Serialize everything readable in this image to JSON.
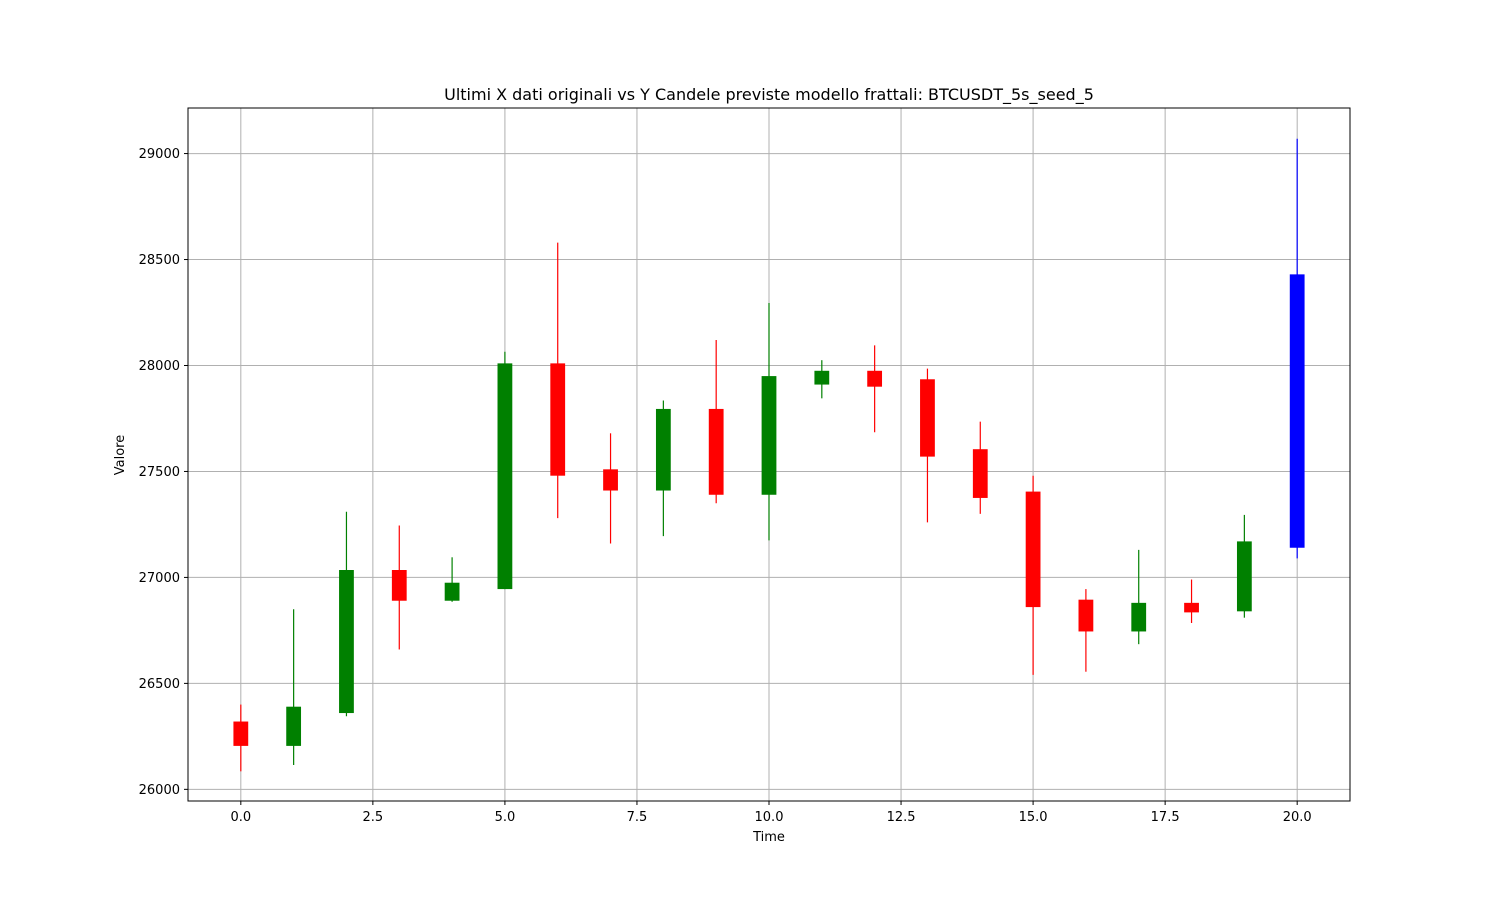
{
  "chart_data": {
    "type": "candlestick",
    "title": "Ultimi X dati originali vs Y Candele previste modello frattali: BTCUSDT_5s_seed_5",
    "xlabel": "Time",
    "ylabel": "Valore",
    "xlim": [
      -1,
      21
    ],
    "ylim": [
      25945,
      29215
    ],
    "xticks": [
      0.0,
      2.5,
      5.0,
      7.5,
      10.0,
      12.5,
      15.0,
      17.5,
      20.0
    ],
    "xtick_labels": [
      "0.0",
      "2.5",
      "5.0",
      "7.5",
      "10.0",
      "12.5",
      "15.0",
      "17.5",
      "20.0"
    ],
    "yticks": [
      26000,
      26500,
      27000,
      27500,
      28000,
      28500,
      29000
    ],
    "ytick_labels": [
      "26000",
      "26500",
      "27000",
      "27500",
      "28000",
      "28500",
      "29000"
    ],
    "grid": true,
    "colors": {
      "up": "#008000",
      "down": "#ff0000",
      "predicted": "#0000ff"
    },
    "candles": [
      {
        "x": 0,
        "open": 26320,
        "close": 26205,
        "high": 26400,
        "low": 26085,
        "color": "down"
      },
      {
        "x": 1,
        "open": 26205,
        "close": 26390,
        "high": 26850,
        "low": 26115,
        "color": "up"
      },
      {
        "x": 2,
        "open": 26360,
        "close": 27035,
        "high": 27310,
        "low": 26345,
        "color": "up"
      },
      {
        "x": 3,
        "open": 27035,
        "close": 26890,
        "high": 27245,
        "low": 26660,
        "color": "down"
      },
      {
        "x": 4,
        "open": 26890,
        "close": 26975,
        "high": 27095,
        "low": 26885,
        "color": "up"
      },
      {
        "x": 5,
        "open": 26945,
        "close": 28010,
        "high": 28065,
        "low": 26945,
        "color": "up"
      },
      {
        "x": 6,
        "open": 28010,
        "close": 27480,
        "high": 28580,
        "low": 27280,
        "color": "down"
      },
      {
        "x": 7,
        "open": 27510,
        "close": 27410,
        "high": 27680,
        "low": 27160,
        "color": "down"
      },
      {
        "x": 8,
        "open": 27410,
        "close": 27795,
        "high": 27835,
        "low": 27195,
        "color": "up"
      },
      {
        "x": 9,
        "open": 27795,
        "close": 27390,
        "high": 28120,
        "low": 27350,
        "color": "down"
      },
      {
        "x": 10,
        "open": 27390,
        "close": 27950,
        "high": 28295,
        "low": 27175,
        "color": "up"
      },
      {
        "x": 11,
        "open": 27910,
        "close": 27975,
        "high": 28025,
        "low": 27845,
        "color": "up"
      },
      {
        "x": 12,
        "open": 27975,
        "close": 27900,
        "high": 28095,
        "low": 27685,
        "color": "down"
      },
      {
        "x": 13,
        "open": 27935,
        "close": 27570,
        "high": 27985,
        "low": 27260,
        "color": "down"
      },
      {
        "x": 14,
        "open": 27605,
        "close": 27375,
        "high": 27735,
        "low": 27300,
        "color": "down"
      },
      {
        "x": 15,
        "open": 27405,
        "close": 26860,
        "high": 27480,
        "low": 26540,
        "color": "down"
      },
      {
        "x": 16,
        "open": 26895,
        "close": 26745,
        "high": 26945,
        "low": 26555,
        "color": "down"
      },
      {
        "x": 17,
        "open": 26745,
        "close": 26880,
        "high": 27130,
        "low": 26685,
        "color": "up"
      },
      {
        "x": 18,
        "open": 26880,
        "close": 26835,
        "high": 26990,
        "low": 26785,
        "color": "down"
      },
      {
        "x": 19,
        "open": 26840,
        "close": 27170,
        "high": 27295,
        "low": 26810,
        "color": "up"
      },
      {
        "x": 20,
        "open": 27140,
        "close": 28430,
        "high": 29070,
        "low": 27090,
        "color": "predicted"
      }
    ]
  }
}
